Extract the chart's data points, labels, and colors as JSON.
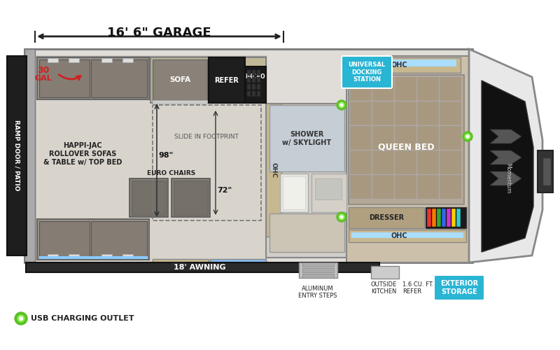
{
  "bg_color": "#ffffff",
  "garage_label": "16' 6\" GARAGE",
  "awning_label": "18' AWNING",
  "usb_label": "USB CHARGING OUTLET",
  "exterior_storage_label": "EXTERIOR\nSTORAGE",
  "aluminum_steps_label": "ALUMINUM\nENTRY STEPS",
  "outside_kitchen_label": "OUTSIDE\nKITCHEN",
  "refer_ext_label": "1.6 CU. FT.\nREFER",
  "cyan_blue": "#29b5d4",
  "green_dot": "#5bbf2a",
  "red_color": "#cc2222",
  "wall_dark": "#4a4a4a",
  "wall_mid": "#888888",
  "floor_light": "#d8d4cc",
  "floor_gray": "#c0bcb4",
  "wood_tan": "#b8a878",
  "sofa_gray": "#7a7870",
  "kitchen_dark": "#2a2a2a",
  "bedroom_floor": "#cdc0aa",
  "ohc_tan": "#c8b890",
  "nose_white": "#e8e8e8",
  "ramp_black": "#1e1e1e"
}
